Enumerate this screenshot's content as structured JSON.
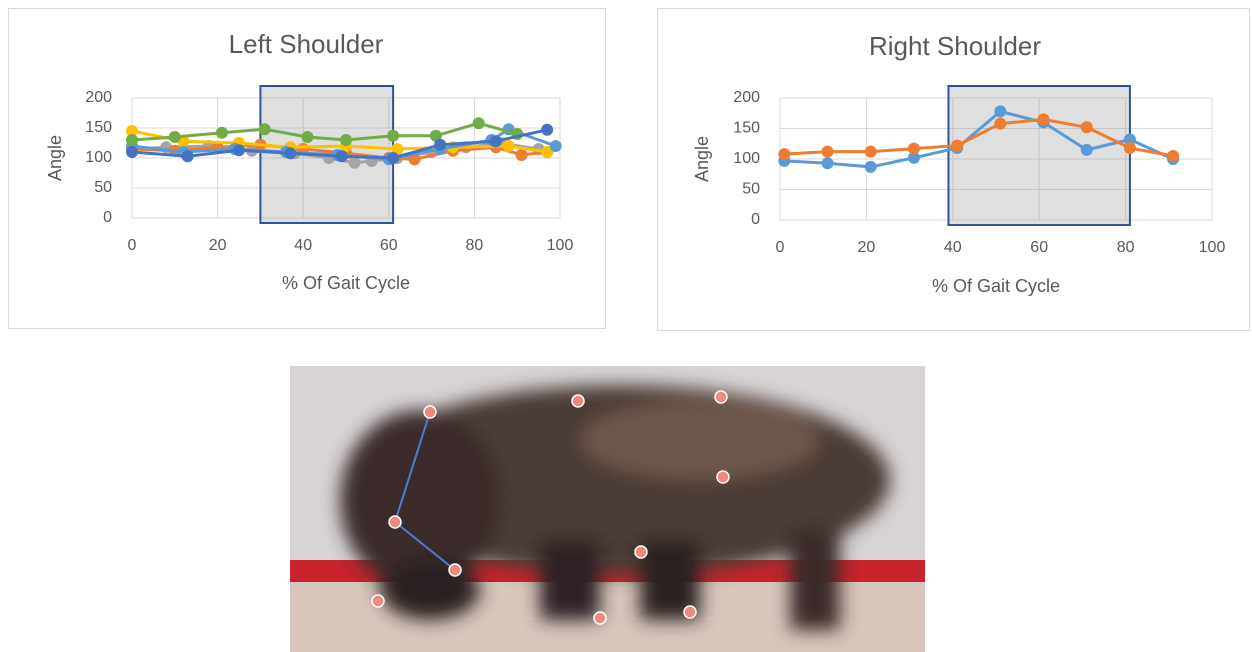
{
  "chart_data": [
    {
      "type": "line",
      "title": "Left Shoulder",
      "x_label": "% Of Gait Cycle",
      "y_label": "Angle",
      "xlim": [
        0,
        100
      ],
      "xticks": [
        0,
        20,
        40,
        60,
        80,
        100
      ],
      "ylim": [
        0,
        200
      ],
      "yticks": [
        0,
        50,
        100,
        150,
        200
      ],
      "grid": true,
      "highlight": [
        30,
        61
      ],
      "series": [
        {
          "color": "#a5a5a5",
          "x": [
            0,
            8,
            18,
            28,
            38,
            46,
            52,
            56,
            62,
            70,
            78,
            86,
            95
          ],
          "values": [
            115,
            118,
            120,
            112,
            108,
            100,
            92,
            95,
            100,
            110,
            118,
            125,
            115
          ]
        },
        {
          "color": "#ed7d31",
          "x": [
            0,
            10,
            20,
            30,
            40,
            50,
            60,
            66,
            75,
            85,
            91,
            97
          ],
          "values": [
            115,
            112,
            118,
            122,
            115,
            108,
            100,
            98,
            112,
            118,
            105,
            110
          ]
        },
        {
          "color": "#ffc000",
          "x": [
            0,
            12,
            25,
            37,
            50,
            62,
            75,
            88,
            97
          ],
          "values": [
            145,
            128,
            125,
            118,
            120,
            115,
            118,
            120,
            110
          ]
        },
        {
          "color": "#5b9bd5",
          "x": [
            0,
            12,
            24,
            36,
            48,
            60,
            72,
            84,
            88,
            99
          ],
          "values": [
            120,
            110,
            115,
            110,
            105,
            98,
            115,
            130,
            148,
            120
          ]
        },
        {
          "color": "#70ad47",
          "x": [
            0,
            10,
            21,
            31,
            41,
            50,
            61,
            71,
            81,
            90
          ],
          "values": [
            130,
            135,
            142,
            148,
            135,
            130,
            137,
            137,
            158,
            140
          ]
        },
        {
          "color": "#4472c4",
          "x": [
            0,
            13,
            25,
            37,
            49,
            61,
            72,
            85,
            97
          ],
          "values": [
            110,
            103,
            113,
            108,
            103,
            100,
            122,
            128,
            147
          ]
        }
      ]
    },
    {
      "type": "line",
      "title": "Right Shoulder",
      "x_label": "% Of Gait Cycle",
      "y_label": "Angle",
      "xlim": [
        0,
        100
      ],
      "xticks": [
        0,
        20,
        40,
        60,
        80,
        100
      ],
      "ylim": [
        0,
        200
      ],
      "yticks": [
        0,
        50,
        100,
        150,
        200
      ],
      "grid": true,
      "highlight": [
        39,
        81
      ],
      "series": [
        {
          "color": "#5b9bd5",
          "x": [
            1,
            11,
            21,
            31,
            41,
            51,
            61,
            71,
            81,
            91
          ],
          "values": [
            97,
            93,
            87,
            102,
            118,
            178,
            160,
            115,
            132,
            100
          ]
        },
        {
          "color": "#ed7d31",
          "x": [
            1,
            11,
            21,
            31,
            41,
            51,
            61,
            71,
            81,
            91
          ],
          "values": [
            108,
            112,
            112,
            117,
            122,
            158,
            165,
            152,
            118,
            105
          ]
        }
      ]
    }
  ]
}
